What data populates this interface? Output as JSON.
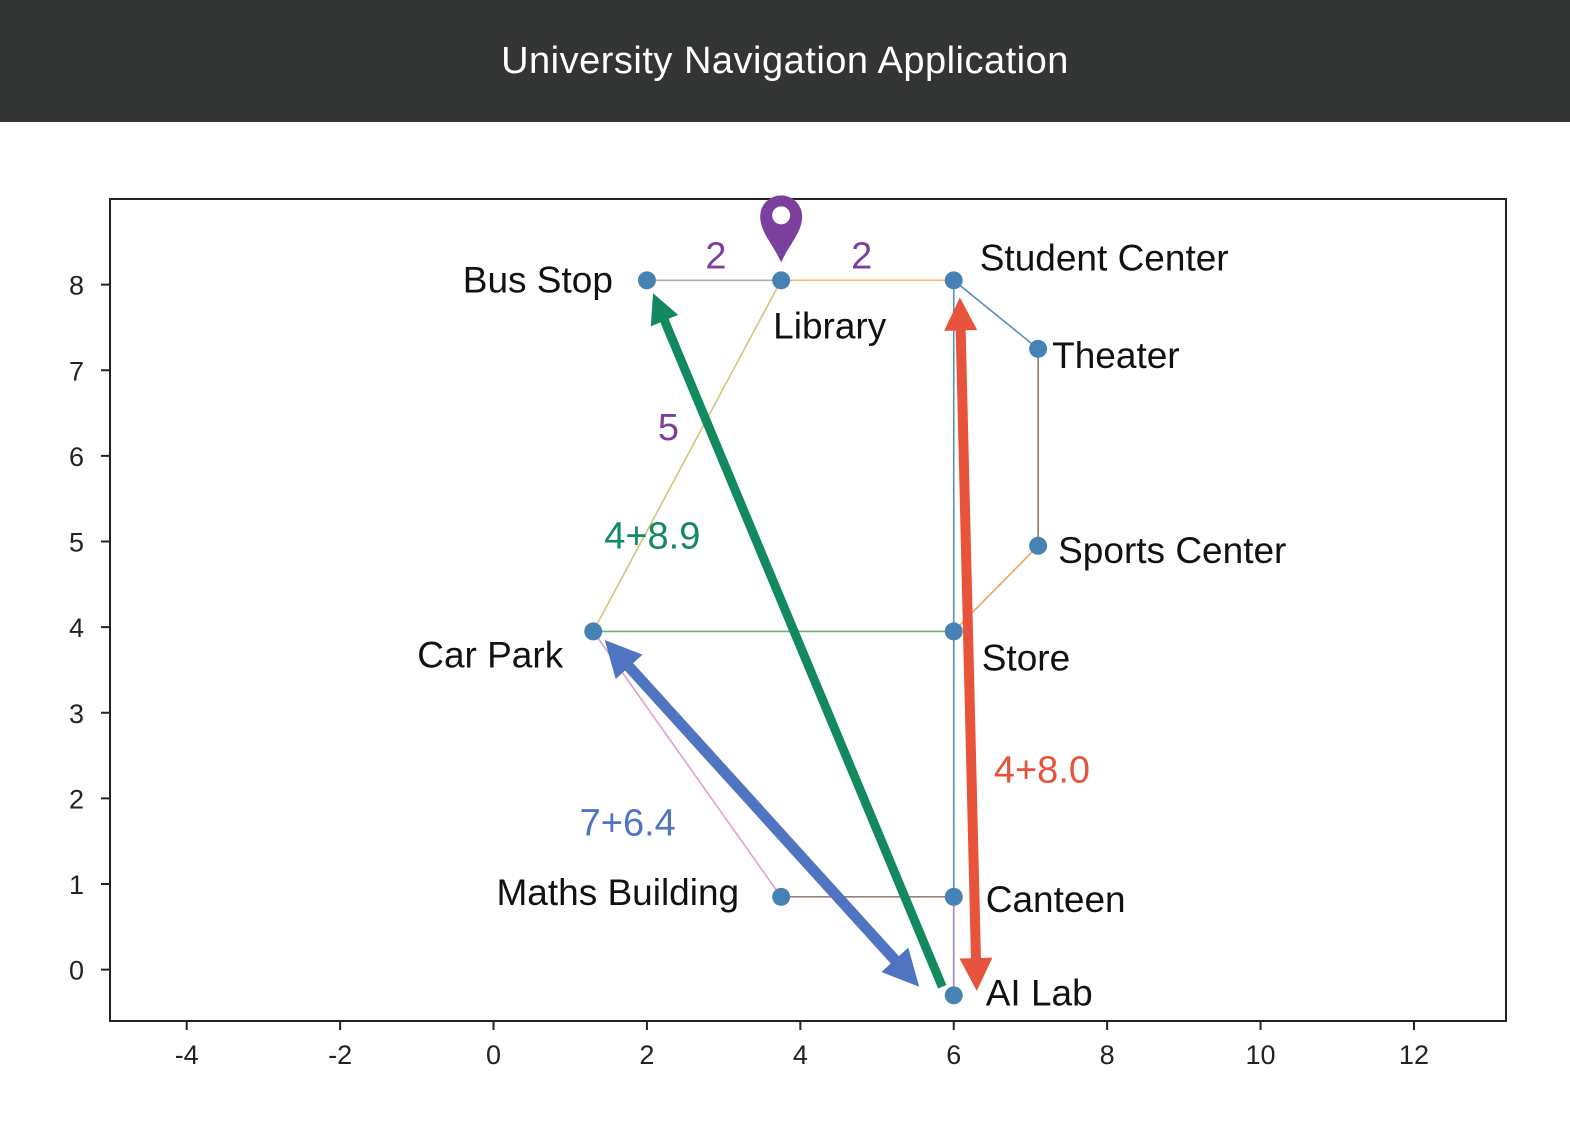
{
  "app": {
    "title": "University Navigation Application"
  },
  "axes": {
    "x": {
      "range": [
        -5,
        13.2
      ],
      "ticks": [
        -4,
        -2,
        0,
        2,
        4,
        6,
        8,
        10,
        12
      ]
    },
    "y": {
      "range": [
        -0.6,
        9.0
      ],
      "ticks": [
        0,
        1,
        2,
        3,
        4,
        5,
        6,
        7,
        8
      ]
    }
  },
  "colors": {
    "node": "#4682b4",
    "marker": "#7b3f9e",
    "route_green": "#138a5e",
    "route_red": "#e8533b",
    "route_blue": "#4f75c2"
  },
  "nodes": [
    {
      "id": "bus_stop",
      "label": "Bus Stop",
      "x": 2.0,
      "y": 8.05,
      "anchor": "end",
      "dx": -34,
      "dy": 12
    },
    {
      "id": "library",
      "label": "Library",
      "x": 3.75,
      "y": 8.05,
      "anchor": "start",
      "dx": -8,
      "dy": 58
    },
    {
      "id": "student_center",
      "label": "Student Center",
      "x": 6.0,
      "y": 8.05,
      "anchor": "start",
      "dx": 26,
      "dy": -10
    },
    {
      "id": "theater",
      "label": "Theater",
      "x": 7.1,
      "y": 7.25,
      "anchor": "start",
      "dx": 14,
      "dy": 19
    },
    {
      "id": "sports_center",
      "label": "Sports Center",
      "x": 7.1,
      "y": 4.95,
      "anchor": "start",
      "dx": 20,
      "dy": 17
    },
    {
      "id": "store",
      "label": "Store",
      "x": 6.0,
      "y": 3.95,
      "anchor": "start",
      "dx": 28,
      "dy": 39
    },
    {
      "id": "car_park",
      "label": "Car Park",
      "x": 1.3,
      "y": 3.95,
      "anchor": "end",
      "dx": -30,
      "dy": 36
    },
    {
      "id": "maths_building",
      "label": "Maths Building",
      "x": 3.75,
      "y": 0.85,
      "anchor": "end",
      "dx": -42,
      "dy": 8
    },
    {
      "id": "canteen",
      "label": "Canteen",
      "x": 6.0,
      "y": 0.85,
      "anchor": "start",
      "dx": 32,
      "dy": 15
    },
    {
      "id": "ai_lab",
      "label": "AI Lab",
      "x": 6.0,
      "y": -0.3,
      "anchor": "start",
      "dx": 32,
      "dy": 10
    }
  ],
  "edges": [
    {
      "from": "bus_stop",
      "to": "library",
      "color": "#aaaaaa"
    },
    {
      "from": "library",
      "to": "student_center",
      "color": "#f1bd6b"
    },
    {
      "from": "library",
      "to": "car_park",
      "color": "#d4c47a"
    },
    {
      "from": "student_center",
      "to": "theater",
      "color": "#5a8fb4"
    },
    {
      "from": "theater",
      "to": "sports_center",
      "color": "#9a7a5e"
    },
    {
      "from": "sports_center",
      "to": "store",
      "color": "#f2a25a"
    },
    {
      "from": "student_center",
      "to": "ai_lab",
      "color": "#5a8fb4"
    },
    {
      "from": "car_park",
      "to": "store",
      "color": "#6db36d"
    },
    {
      "from": "car_park",
      "to": "maths_building",
      "color": "#e0a0cc"
    },
    {
      "from": "maths_building",
      "to": "canteen",
      "color": "#9a8077"
    },
    {
      "from": "canteen",
      "to": "ai_lab",
      "color": "#a78ac6"
    }
  ],
  "edge_labels": [
    {
      "text": "2",
      "x": 2.9,
      "y": 8.35,
      "color": "#7b3f9e"
    },
    {
      "text": "2",
      "x": 4.8,
      "y": 8.35,
      "color": "#7b3f9e"
    },
    {
      "text": "5",
      "x": 2.28,
      "y": 6.35,
      "color": "#7b3f9e"
    }
  ],
  "routes": [
    {
      "id": "route_green",
      "from_xy": [
        5.85,
        -0.2
      ],
      "to_xy": [
        2.08,
        7.9
      ],
      "color": "#138a5e",
      "width": 9,
      "double": false,
      "label": "4+8.9",
      "label_xy": [
        2.07,
        5.08
      ]
    },
    {
      "id": "route_red",
      "from_xy": [
        6.3,
        -0.25
      ],
      "to_xy": [
        6.08,
        7.85
      ],
      "color": "#e8533b",
      "width": 10,
      "double": true,
      "label": "4+8.0",
      "label_xy": [
        7.15,
        2.35
      ]
    },
    {
      "id": "route_blue",
      "from_xy": [
        1.45,
        3.85
      ],
      "to_xy": [
        5.55,
        -0.2
      ],
      "color": "#4f75c2",
      "width": 11,
      "double": true,
      "label": "7+6.4",
      "label_xy": [
        1.75,
        1.73
      ]
    }
  ],
  "marker": {
    "at": "library"
  }
}
